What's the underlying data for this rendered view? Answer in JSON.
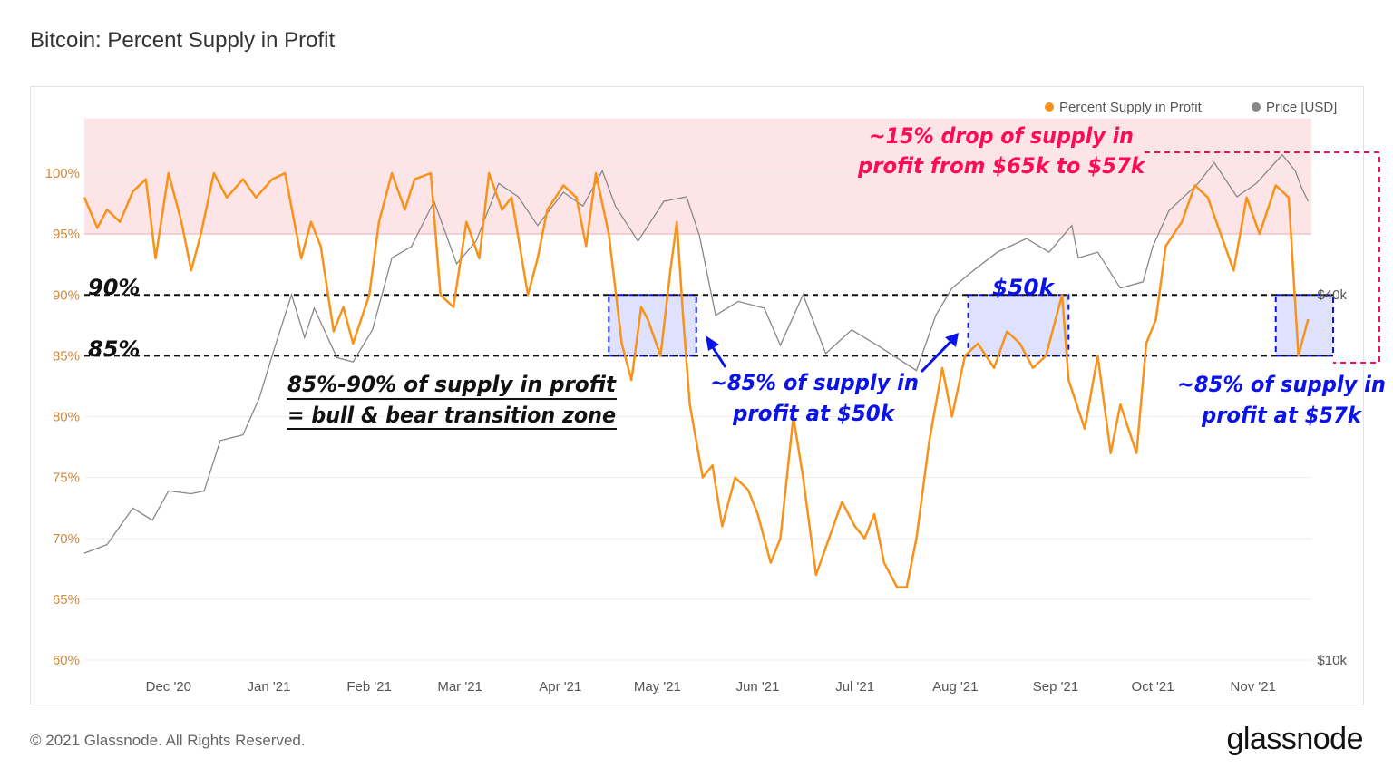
{
  "title": "Bitcoin: Percent Supply in Profit",
  "footer": {
    "copyright": "© 2021 Glassnode. All Rights Reserved.",
    "logo": "glassnode"
  },
  "watermark": "glassnode",
  "colors": {
    "supply": "#f7931a",
    "price": "#888888",
    "band": "#fde4e6",
    "band_line": "#f08080",
    "annotation_red": "#ff0a54",
    "annotation_blue": "#0b13e8",
    "zone_fill": "#d6dbff"
  },
  "chart_data": {
    "type": "line",
    "title": "Bitcoin: Percent Supply in Profit",
    "legend": {
      "placement": "top-right",
      "entries": [
        "Percent Supply in Profit",
        "Price [USD]"
      ]
    },
    "x_ticks": [
      "Dec '20",
      "Jan '21",
      "Feb '21",
      "Mar '21",
      "Apr '21",
      "May '21",
      "Jun '21",
      "Jul '21",
      "Aug '21",
      "Sep '21",
      "Oct '21",
      "Nov '21"
    ],
    "x_range": [
      "2020-11-05",
      "2021-11-19"
    ],
    "y_left": {
      "ticks": [
        "60%",
        "65%",
        "70%",
        "75%",
        "80%",
        "85%",
        "90%",
        "95%",
        "100%"
      ],
      "range": [
        60,
        104.5
      ]
    },
    "y_right": {
      "scale": "log",
      "ticks": [
        "$10k",
        "$40k"
      ]
    },
    "grid": true,
    "band": {
      "from": 95,
      "to": 104.5
    },
    "series": [
      {
        "name": "Percent Supply in Profit",
        "axis": "left",
        "points": [
          [
            "2020-11-05",
            98
          ],
          [
            "2020-11-09",
            95.5
          ],
          [
            "2020-11-12",
            97
          ],
          [
            "2020-11-16",
            96
          ],
          [
            "2020-11-20",
            98.5
          ],
          [
            "2020-11-24",
            99.5
          ],
          [
            "2020-11-27",
            93
          ],
          [
            "2020-12-01",
            100
          ],
          [
            "2020-12-05",
            96
          ],
          [
            "2020-12-08",
            92
          ],
          [
            "2020-12-11",
            95
          ],
          [
            "2020-12-15",
            100
          ],
          [
            "2020-12-19",
            98
          ],
          [
            "2020-12-24",
            99.5
          ],
          [
            "2020-12-28",
            98
          ],
          [
            "2021-01-02",
            99.5
          ],
          [
            "2021-01-06",
            100
          ],
          [
            "2021-01-11",
            93
          ],
          [
            "2021-01-14",
            96
          ],
          [
            "2021-01-17",
            94
          ],
          [
            "2021-01-21",
            87
          ],
          [
            "2021-01-24",
            89
          ],
          [
            "2021-01-27",
            86
          ],
          [
            "2021-02-01",
            90
          ],
          [
            "2021-02-04",
            96
          ],
          [
            "2021-02-08",
            100
          ],
          [
            "2021-02-12",
            97
          ],
          [
            "2021-02-15",
            99.5
          ],
          [
            "2021-02-20",
            100
          ],
          [
            "2021-02-23",
            90
          ],
          [
            "2021-02-27",
            89
          ],
          [
            "2021-03-03",
            96
          ],
          [
            "2021-03-07",
            93
          ],
          [
            "2021-03-10",
            100
          ],
          [
            "2021-03-14",
            97
          ],
          [
            "2021-03-17",
            98
          ],
          [
            "2021-03-22",
            90
          ],
          [
            "2021-03-25",
            93
          ],
          [
            "2021-03-28",
            97
          ],
          [
            "2021-04-02",
            99
          ],
          [
            "2021-04-06",
            98
          ],
          [
            "2021-04-09",
            94
          ],
          [
            "2021-04-12",
            100
          ],
          [
            "2021-04-16",
            95
          ],
          [
            "2021-04-20",
            86
          ],
          [
            "2021-04-23",
            83
          ],
          [
            "2021-04-26",
            89
          ],
          [
            "2021-04-28",
            88
          ],
          [
            "2021-05-02",
            85
          ],
          [
            "2021-05-05",
            92
          ],
          [
            "2021-05-07",
            96
          ],
          [
            "2021-05-09",
            88
          ],
          [
            "2021-05-11",
            81
          ],
          [
            "2021-05-15",
            75
          ],
          [
            "2021-05-18",
            76
          ],
          [
            "2021-05-21",
            71
          ],
          [
            "2021-05-25",
            75
          ],
          [
            "2021-05-29",
            74
          ],
          [
            "2021-06-01",
            72
          ],
          [
            "2021-06-05",
            68
          ],
          [
            "2021-06-08",
            70
          ],
          [
            "2021-06-12",
            80
          ],
          [
            "2021-06-15",
            75
          ],
          [
            "2021-06-19",
            67
          ],
          [
            "2021-06-23",
            70
          ],
          [
            "2021-06-27",
            73
          ],
          [
            "2021-07-01",
            71
          ],
          [
            "2021-07-04",
            70
          ],
          [
            "2021-07-07",
            72
          ],
          [
            "2021-07-10",
            68
          ],
          [
            "2021-07-14",
            66
          ],
          [
            "2021-07-17",
            66
          ],
          [
            "2021-07-20",
            70
          ],
          [
            "2021-07-24",
            78
          ],
          [
            "2021-07-28",
            84
          ],
          [
            "2021-07-31",
            80
          ],
          [
            "2021-08-04",
            85
          ],
          [
            "2021-08-08",
            86
          ],
          [
            "2021-08-13",
            84
          ],
          [
            "2021-08-17",
            87
          ],
          [
            "2021-08-21",
            86
          ],
          [
            "2021-08-25",
            84
          ],
          [
            "2021-08-29",
            85
          ],
          [
            "2021-09-03",
            90
          ],
          [
            "2021-09-05",
            83
          ],
          [
            "2021-09-10",
            79
          ],
          [
            "2021-09-14",
            85
          ],
          [
            "2021-09-18",
            77
          ],
          [
            "2021-09-21",
            81
          ],
          [
            "2021-09-26",
            77
          ],
          [
            "2021-09-29",
            86
          ],
          [
            "2021-10-02",
            88
          ],
          [
            "2021-10-05",
            94
          ],
          [
            "2021-10-10",
            96
          ],
          [
            "2021-10-14",
            99
          ],
          [
            "2021-10-18",
            98
          ],
          [
            "2021-10-22",
            95
          ],
          [
            "2021-10-26",
            92
          ],
          [
            "2021-10-30",
            98
          ],
          [
            "2021-11-03",
            95
          ],
          [
            "2021-11-08",
            99
          ],
          [
            "2021-11-12",
            98
          ],
          [
            "2021-11-15",
            85
          ],
          [
            "2021-11-18",
            88
          ]
        ]
      },
      {
        "name": "Price [USD]",
        "axis": "right",
        "points": [
          [
            "2020-11-05",
            15000
          ],
          [
            "2020-11-12",
            15500
          ],
          [
            "2020-11-20",
            17800
          ],
          [
            "2020-11-26",
            17000
          ],
          [
            "2020-12-01",
            19000
          ],
          [
            "2020-12-08",
            18800
          ],
          [
            "2020-12-12",
            19000
          ],
          [
            "2020-12-17",
            23000
          ],
          [
            "2020-12-24",
            23500
          ],
          [
            "2020-12-29",
            27000
          ],
          [
            "2021-01-03",
            33000
          ],
          [
            "2021-01-08",
            40000
          ],
          [
            "2021-01-12",
            34000
          ],
          [
            "2021-01-15",
            38000
          ],
          [
            "2021-01-22",
            31500
          ],
          [
            "2021-01-27",
            31000
          ],
          [
            "2021-02-02",
            35000
          ],
          [
            "2021-02-08",
            46000
          ],
          [
            "2021-02-14",
            48000
          ],
          [
            "2021-02-21",
            57000
          ],
          [
            "2021-02-28",
            45000
          ],
          [
            "2021-03-06",
            49000
          ],
          [
            "2021-03-13",
            61000
          ],
          [
            "2021-03-19",
            58000
          ],
          [
            "2021-03-25",
            52000
          ],
          [
            "2021-04-02",
            59000
          ],
          [
            "2021-04-08",
            56000
          ],
          [
            "2021-04-14",
            64000
          ],
          [
            "2021-04-18",
            56000
          ],
          [
            "2021-04-25",
            49000
          ],
          [
            "2021-05-03",
            57000
          ],
          [
            "2021-05-10",
            58000
          ],
          [
            "2021-05-14",
            50000
          ],
          [
            "2021-05-19",
            37000
          ],
          [
            "2021-05-26",
            39000
          ],
          [
            "2021-06-03",
            38000
          ],
          [
            "2021-06-08",
            33000
          ],
          [
            "2021-06-15",
            40000
          ],
          [
            "2021-06-22",
            32000
          ],
          [
            "2021-06-30",
            35000
          ],
          [
            "2021-07-08",
            33000
          ],
          [
            "2021-07-20",
            30000
          ],
          [
            "2021-07-26",
            37000
          ],
          [
            "2021-07-31",
            41000
          ],
          [
            "2021-08-07",
            44000
          ],
          [
            "2021-08-14",
            47000
          ],
          [
            "2021-08-23",
            49500
          ],
          [
            "2021-08-30",
            47000
          ],
          [
            "2021-09-06",
            52000
          ],
          [
            "2021-09-08",
            46000
          ],
          [
            "2021-09-14",
            47000
          ],
          [
            "2021-09-21",
            41000
          ],
          [
            "2021-09-28",
            42000
          ],
          [
            "2021-10-01",
            48000
          ],
          [
            "2021-10-06",
            55000
          ],
          [
            "2021-10-15",
            61000
          ],
          [
            "2021-10-20",
            66000
          ],
          [
            "2021-10-27",
            58000
          ],
          [
            "2021-11-02",
            61000
          ],
          [
            "2021-11-10",
            68000
          ],
          [
            "2021-11-14",
            64000
          ],
          [
            "2021-11-16",
            60000
          ],
          [
            "2021-11-18",
            57000
          ]
        ]
      }
    ],
    "reference_lines": [
      {
        "value": 90,
        "label": "90%"
      },
      {
        "value": 85,
        "label": "85%"
      }
    ],
    "annotations": {
      "zone": [
        "85%-90% of supply in profit",
        "= bull & bear transition zone"
      ],
      "may": [
        "~85% of supply in",
        "profit at $50k"
      ],
      "aug": "$50k",
      "nov": [
        "~85% of supply in",
        "profit at $57k"
      ],
      "drop": [
        "~15% drop of supply in",
        "profit from $65k to $57k"
      ]
    },
    "highlight_ranges": [
      [
        "2021-04-16",
        "2021-05-13"
      ],
      [
        "2021-08-05",
        "2021-09-05"
      ],
      [
        "2021-11-08",
        "2021-11-27"
      ]
    ]
  }
}
